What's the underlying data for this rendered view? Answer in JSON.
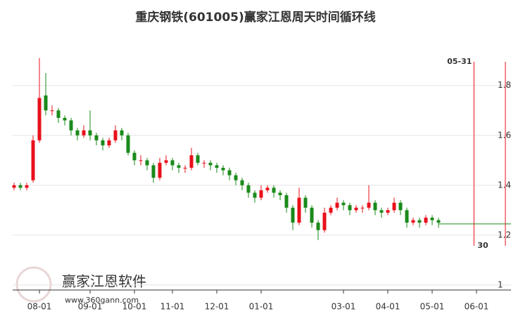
{
  "chart_data": {
    "type": "candlestick",
    "title": "重庆钢铁(601005)赢家江恩周天时间循环线",
    "watermark": "赢家江恩软件",
    "watermark_url": "www.360gann.com",
    "categories": [
      null,
      null,
      null,
      null,
      "08-01",
      null,
      null,
      null,
      null,
      null,
      null,
      null,
      "09-01",
      null,
      null,
      null,
      null,
      null,
      null,
      "10-01",
      null,
      null,
      null,
      null,
      null,
      "11-01",
      null,
      null,
      null,
      null,
      null,
      null,
      "12-01",
      null,
      null,
      null,
      null,
      null,
      null,
      "01-01",
      null,
      null,
      null,
      null,
      null,
      null,
      null,
      null,
      null,
      null,
      null,
      null,
      "03-01",
      null,
      null,
      null,
      null,
      null,
      null,
      "04-01",
      null,
      null,
      null,
      null,
      null,
      null,
      "05-01",
      null,
      null,
      null,
      null,
      null,
      null,
      "06-01"
    ],
    "open": [
      1.39,
      1.4,
      1.39,
      1.42,
      1.58,
      1.76,
      1.7,
      1.7,
      1.67,
      1.66,
      1.62,
      1.6,
      1.62,
      1.6,
      1.58,
      1.56,
      1.58,
      1.62,
      1.6,
      1.53,
      1.5,
      1.5,
      1.48,
      1.43,
      1.49,
      1.5,
      1.48,
      1.47,
      1.47,
      1.52,
      1.49,
      1.49,
      1.48,
      1.47,
      1.46,
      1.44,
      1.42,
      1.4,
      1.37,
      1.35,
      1.38,
      1.39,
      1.37,
      1.36,
      1.31,
      1.25,
      1.35,
      1.31,
      1.25,
      1.22,
      1.29,
      1.31,
      1.33,
      1.32,
      1.3,
      1.31,
      1.31,
      1.33,
      1.3,
      1.29,
      1.3,
      1.33,
      1.3,
      1.25,
      1.26,
      1.25,
      1.27,
      1.26,
      null,
      null,
      null,
      null,
      null,
      null
    ],
    "high": [
      1.41,
      1.41,
      1.41,
      1.6,
      1.91,
      1.85,
      1.72,
      1.71,
      1.68,
      1.67,
      1.63,
      1.64,
      1.7,
      1.61,
      1.59,
      1.59,
      1.64,
      1.63,
      1.61,
      1.54,
      1.52,
      1.51,
      1.49,
      1.51,
      1.52,
      1.51,
      1.49,
      1.48,
      1.55,
      1.53,
      1.5,
      1.5,
      1.49,
      1.48,
      1.47,
      1.45,
      1.43,
      1.41,
      1.38,
      1.4,
      1.4,
      1.4,
      1.38,
      1.37,
      1.32,
      1.39,
      1.36,
      1.32,
      1.26,
      1.31,
      1.32,
      1.35,
      1.34,
      1.33,
      1.32,
      1.32,
      1.4,
      1.34,
      1.31,
      1.31,
      1.35,
      1.34,
      1.31,
      1.27,
      1.27,
      1.28,
      1.28,
      1.27,
      null,
      null,
      null,
      null,
      null,
      null
    ],
    "low": [
      1.38,
      1.38,
      1.38,
      1.41,
      1.57,
      1.68,
      1.68,
      1.65,
      1.64,
      1.6,
      1.58,
      1.59,
      1.58,
      1.56,
      1.54,
      1.55,
      1.57,
      1.58,
      1.52,
      1.48,
      1.48,
      1.46,
      1.41,
      1.42,
      1.48,
      1.46,
      1.45,
      1.45,
      1.46,
      1.48,
      1.47,
      1.46,
      1.45,
      1.44,
      1.42,
      1.4,
      1.38,
      1.35,
      1.33,
      1.34,
      1.37,
      1.35,
      1.34,
      1.29,
      1.22,
      1.24,
      1.29,
      1.23,
      1.18,
      1.21,
      1.28,
      1.3,
      1.3,
      1.28,
      1.29,
      1.29,
      1.3,
      1.28,
      1.27,
      1.28,
      1.29,
      1.28,
      1.23,
      1.24,
      1.23,
      1.24,
      1.24,
      1.23,
      null,
      null,
      null,
      null,
      null,
      null
    ],
    "close": [
      1.4,
      1.39,
      1.4,
      1.58,
      1.75,
      1.7,
      1.7,
      1.67,
      1.66,
      1.62,
      1.6,
      1.62,
      1.6,
      1.58,
      1.56,
      1.58,
      1.62,
      1.6,
      1.53,
      1.5,
      1.5,
      1.48,
      1.43,
      1.49,
      1.5,
      1.48,
      1.47,
      1.47,
      1.52,
      1.49,
      1.49,
      1.48,
      1.47,
      1.46,
      1.44,
      1.42,
      1.4,
      1.37,
      1.35,
      1.38,
      1.39,
      1.37,
      1.36,
      1.31,
      1.25,
      1.35,
      1.31,
      1.25,
      1.22,
      1.29,
      1.31,
      1.33,
      1.32,
      1.3,
      1.31,
      1.31,
      1.33,
      1.3,
      1.29,
      1.3,
      1.33,
      1.3,
      1.25,
      1.26,
      1.25,
      1.27,
      1.26,
      1.25,
      null,
      null,
      null,
      null,
      null,
      null
    ],
    "up_color": "#e8101a",
    "down_color": "#1a8a1a",
    "guide_value": 1.245,
    "guide_color": "#1a8a1a",
    "marker": {
      "x": 72.6,
      "label": "05-31",
      "bottom_label": "30",
      "color": "#e8101a"
    },
    "ylim": [
      0.98,
      2.03
    ],
    "yticks": [
      1,
      1.2,
      1.4,
      1.6,
      1.8
    ],
    "grid": true
  }
}
